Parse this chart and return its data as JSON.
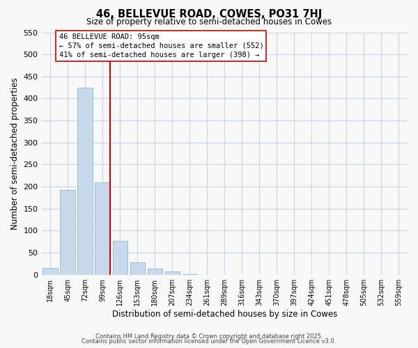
{
  "title": "46, BELLEVUE ROAD, COWES, PO31 7HJ",
  "subtitle": "Size of property relative to semi-detached houses in Cowes",
  "xlabel": "Distribution of semi-detached houses by size in Cowes",
  "ylabel": "Number of semi-detached properties",
  "bin_labels": [
    "18sqm",
    "45sqm",
    "72sqm",
    "99sqm",
    "126sqm",
    "153sqm",
    "180sqm",
    "207sqm",
    "234sqm",
    "261sqm",
    "289sqm",
    "316sqm",
    "343sqm",
    "370sqm",
    "397sqm",
    "424sqm",
    "451sqm",
    "478sqm",
    "505sqm",
    "532sqm",
    "559sqm"
  ],
  "bar_values": [
    15,
    193,
    425,
    210,
    77,
    28,
    13,
    8,
    1,
    0,
    0,
    0,
    0,
    0,
    0,
    0,
    0,
    0,
    0,
    0,
    0
  ],
  "bar_color": "#c9d9ec",
  "bar_edge_color": "#8cb4d2",
  "red_line_x": 3.425,
  "red_line_color": "#cc0000",
  "annotation_title": "46 BELLEVUE ROAD: 95sqm",
  "annotation_line1": "← 57% of semi-detached houses are smaller (552)",
  "annotation_line2": "41% of semi-detached houses are larger (398) →",
  "annotation_box_color": "#ffffff",
  "annotation_box_edge": "#cc0000",
  "ylim": [
    0,
    550
  ],
  "yticks": [
    0,
    50,
    100,
    150,
    200,
    250,
    300,
    350,
    400,
    450,
    500,
    550
  ],
  "footer1": "Contains HM Land Registry data © Crown copyright and database right 2025.",
  "footer2": "Contains public sector information licensed under the Open Government Licence v3.0.",
  "bg_color": "#f8f8f8",
  "grid_color": "#c8d4e4"
}
